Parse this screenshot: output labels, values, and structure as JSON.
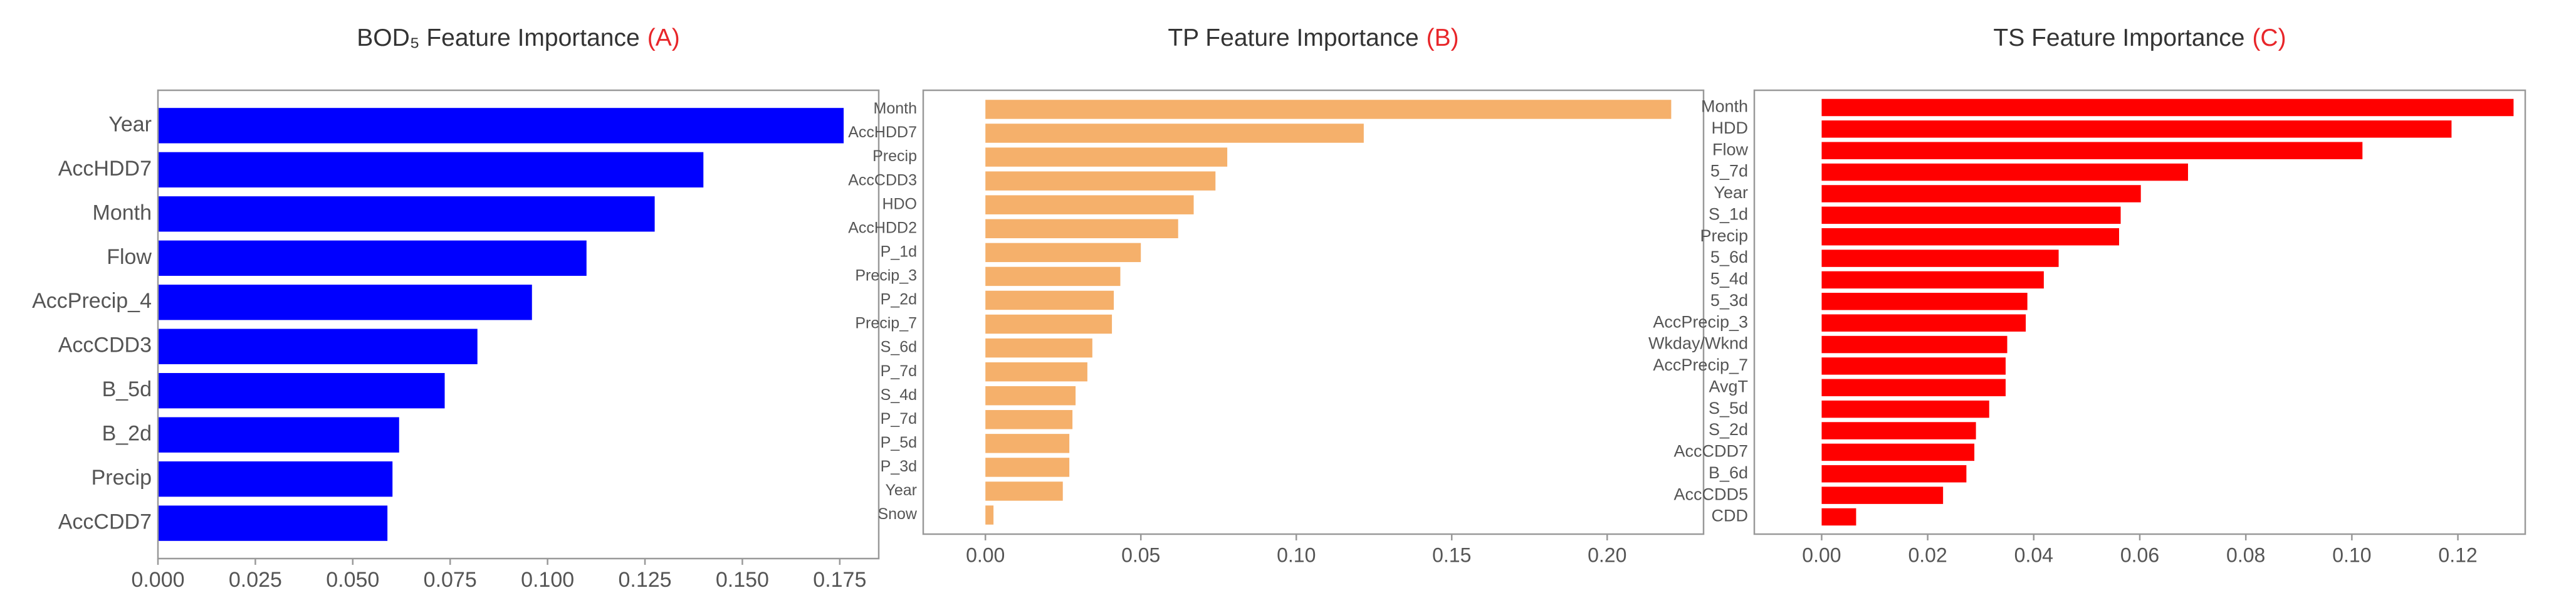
{
  "chart_data": [
    {
      "type": "barh",
      "title": "BOD₅ Feature Importance",
      "panel_label": "(A)",
      "panel_label_color": "#e8262a",
      "color": "#0000ff",
      "categories": [
        "Year",
        "AccHDD7",
        "Month",
        "Flow",
        "AccPrecip_4",
        "AccCDD3",
        "B_5d",
        "B_2d",
        "Precip",
        "AccCDD7"
      ],
      "values": [
        0.176,
        0.14,
        0.1275,
        0.11,
        0.096,
        0.082,
        0.0736,
        0.0619,
        0.0602,
        0.0589
      ],
      "xlim": [
        0,
        0.185
      ],
      "xticks": [
        {
          "value": 0,
          "label": "0.000"
        },
        0.025,
        {
          "value": 0.05,
          "label": "0.050"
        },
        0.075,
        {
          "value": 0.1,
          "label": "0.100"
        },
        0.125,
        {
          "value": 0.15,
          "label": "0.150"
        },
        0.175
      ]
    },
    {
      "type": "barh",
      "title": "TP Feature Importance",
      "panel_label": "(B)",
      "panel_label_color": "#e8262a",
      "color": "#f5b06b",
      "categories": [
        "Month",
        "AccHDD7",
        "Precip",
        "AccCDD3",
        "HDO",
        "AccHDD2",
        "P_1d",
        "Precip_3",
        "P_2d",
        "Precip_7",
        "S_6d",
        "P_7d",
        "S_4d",
        "P_7d",
        "P_5d",
        "P_3d",
        "Year",
        "Snow"
      ],
      "values": [
        0.2206,
        0.1217,
        0.0778,
        0.074,
        0.067,
        0.062,
        0.05,
        0.0434,
        0.0413,
        0.0407,
        0.0344,
        0.0328,
        0.029,
        0.028,
        0.027,
        0.027,
        0.0249,
        0.0026
      ],
      "xlim": [
        -0.02,
        0.231
      ],
      "xticks": [
        {
          "value": 0,
          "label": "0.00"
        },
        0.05,
        {
          "value": 0.1,
          "label": "0.10"
        },
        0.15,
        {
          "value": 0.2,
          "label": "0.20"
        }
      ]
    },
    {
      "type": "barh",
      "title": "TS Feature Importance",
      "panel_label": "(C)",
      "panel_label_color": "#e8262a",
      "color": "#ff0000",
      "categories": [
        "Month",
        "HDD",
        "Flow",
        "5_7d",
        "Year",
        "S_1d",
        "Precip",
        "5_6d",
        "5_4d",
        "5_3d",
        "AccPrecip_3",
        "Wkday/Wknd",
        "AccPrecip_7",
        "AvgT",
        "S_5d",
        "S_2d",
        "AccCDD7",
        "B_6d",
        "AccCDD5",
        "CDD"
      ],
      "values": [
        0.1305,
        0.1188,
        0.102,
        0.0691,
        0.0602,
        0.0564,
        0.0561,
        0.0447,
        0.0419,
        0.0388,
        0.0385,
        0.035,
        0.0347,
        0.0347,
        0.0316,
        0.0291,
        0.0288,
        0.0273,
        0.0229,
        0.0065
      ],
      "xlim": [
        -0.0127,
        0.1327
      ],
      "xticks": [
        {
          "value": 0,
          "label": "0.00"
        },
        0.02,
        0.04,
        0.06,
        0.08,
        {
          "value": 0.1,
          "label": "0.10"
        },
        0.12
      ]
    }
  ]
}
